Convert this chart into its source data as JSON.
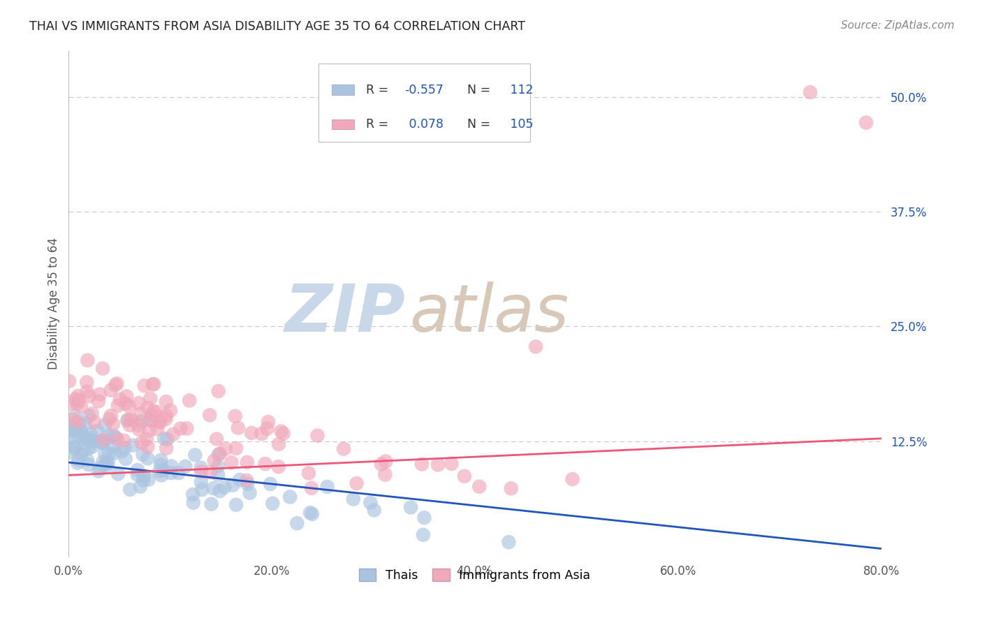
{
  "title": "THAI VS IMMIGRANTS FROM ASIA DISABILITY AGE 35 TO 64 CORRELATION CHART",
  "source": "Source: ZipAtlas.com",
  "ylabel": "Disability Age 35 to 64",
  "xlim": [
    0.0,
    0.8
  ],
  "ylim": [
    0.0,
    0.55
  ],
  "xtick_labels": [
    "0.0%",
    "",
    "20.0%",
    "",
    "40.0%",
    "",
    "60.0%",
    "",
    "80.0%"
  ],
  "xtick_vals": [
    0.0,
    0.1,
    0.2,
    0.3,
    0.4,
    0.5,
    0.6,
    0.7,
    0.8
  ],
  "ytick_labels": [
    "12.5%",
    "25.0%",
    "37.5%",
    "50.0%"
  ],
  "ytick_vals": [
    0.125,
    0.25,
    0.375,
    0.5
  ],
  "grid_color": "#c8c8c8",
  "background_color": "#ffffff",
  "blue_color": "#aac4e0",
  "pink_color": "#f0a8ba",
  "blue_line_color": "#2255bb",
  "pink_line_color": "#ee5577",
  "watermark_zip_color": "#c8d8e8",
  "watermark_atlas_color": "#d8c8b8",
  "legend_label_blue": "Thais",
  "legend_label_pink": "Immigrants from Asia",
  "n_blue": 112,
  "n_pink": 105,
  "blue_trend_x": [
    0.0,
    0.8
  ],
  "blue_trend_y": [
    0.102,
    0.008
  ],
  "pink_trend_x": [
    0.0,
    0.8
  ],
  "pink_trend_y": [
    0.088,
    0.128
  ]
}
